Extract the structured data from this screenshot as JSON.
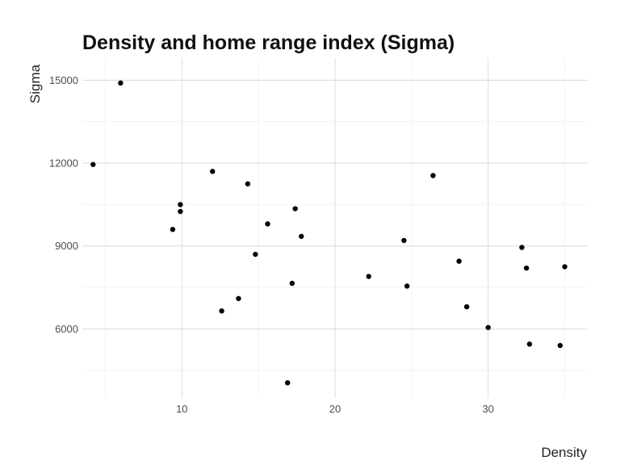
{
  "chart_data": {
    "type": "scatter",
    "title": "Density and home range index (Sigma)",
    "xlabel": "Density",
    "ylabel": "Sigma",
    "xlim": [
      3.5,
      36.5
    ],
    "ylim": [
      3500,
      15800
    ],
    "x_ticks": [
      10,
      20,
      30
    ],
    "x_minor_ticks": [
      5,
      15,
      25,
      35
    ],
    "y_ticks": [
      6000,
      9000,
      12000,
      15000
    ],
    "y_minor_ticks": [
      4500,
      7500,
      10500,
      13500
    ],
    "grid": true,
    "legend": "none",
    "point_color": "#000000",
    "points": [
      {
        "x": 6.0,
        "y": 14900
      },
      {
        "x": 4.2,
        "y": 11950
      },
      {
        "x": 9.9,
        "y": 10500
      },
      {
        "x": 9.9,
        "y": 10250
      },
      {
        "x": 9.4,
        "y": 9600
      },
      {
        "x": 12.0,
        "y": 11700
      },
      {
        "x": 12.6,
        "y": 6650
      },
      {
        "x": 13.7,
        "y": 7100
      },
      {
        "x": 14.3,
        "y": 11250
      },
      {
        "x": 14.8,
        "y": 8700
      },
      {
        "x": 15.6,
        "y": 9800
      },
      {
        "x": 17.2,
        "y": 7650
      },
      {
        "x": 17.4,
        "y": 10350
      },
      {
        "x": 17.8,
        "y": 9350
      },
      {
        "x": 16.9,
        "y": 4050
      },
      {
        "x": 22.2,
        "y": 7900
      },
      {
        "x": 24.5,
        "y": 9200
      },
      {
        "x": 24.7,
        "y": 7550
      },
      {
        "x": 26.4,
        "y": 11550
      },
      {
        "x": 28.1,
        "y": 8450
      },
      {
        "x": 28.6,
        "y": 6800
      },
      {
        "x": 30.0,
        "y": 6050
      },
      {
        "x": 32.2,
        "y": 8950
      },
      {
        "x": 32.5,
        "y": 8200
      },
      {
        "x": 32.7,
        "y": 5450
      },
      {
        "x": 34.7,
        "y": 5400
      },
      {
        "x": 35.0,
        "y": 8250
      }
    ]
  }
}
